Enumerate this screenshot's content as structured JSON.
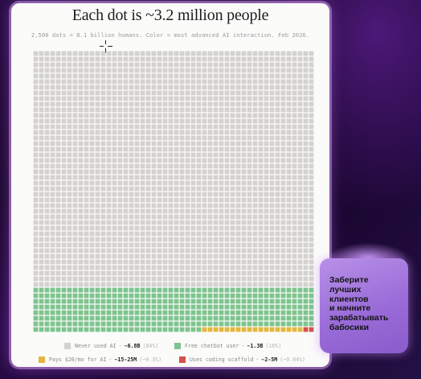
{
  "chart_data": {
    "type": "waffle",
    "title": "Each dot is ~3.2 million people",
    "subtitle": "2,500 dots = 8.1 billion humans. Color = most advanced AI interaction. Feb 2026.",
    "grid": {
      "rows": 50,
      "cols": 50
    },
    "total_dots": 2500,
    "series": [
      {
        "name": "Never used AI",
        "value": "~6.8B",
        "percent": "(84%)",
        "dots": 2100,
        "color": "#d3d2ce"
      },
      {
        "name": "Free chatbot user",
        "value": "~1.3B",
        "percent": "(16%)",
        "dots": 380,
        "color": "#7dc48e"
      },
      {
        "name": "Pays $20/mo for AI",
        "value": "~15-25M",
        "percent": "(~0.3%)",
        "dots": 18,
        "color": "#e3b73f"
      },
      {
        "name": "Uses coding scaffold",
        "value": "~2-5M",
        "percent": "(~0.04%)",
        "dots": 2,
        "color": "#d3524b"
      }
    ]
  },
  "promo": {
    "text": "Заберите\nлучших\nклиентов\nи начните\nзарабатывать\nбабосики",
    "color": "#a47ae0"
  }
}
